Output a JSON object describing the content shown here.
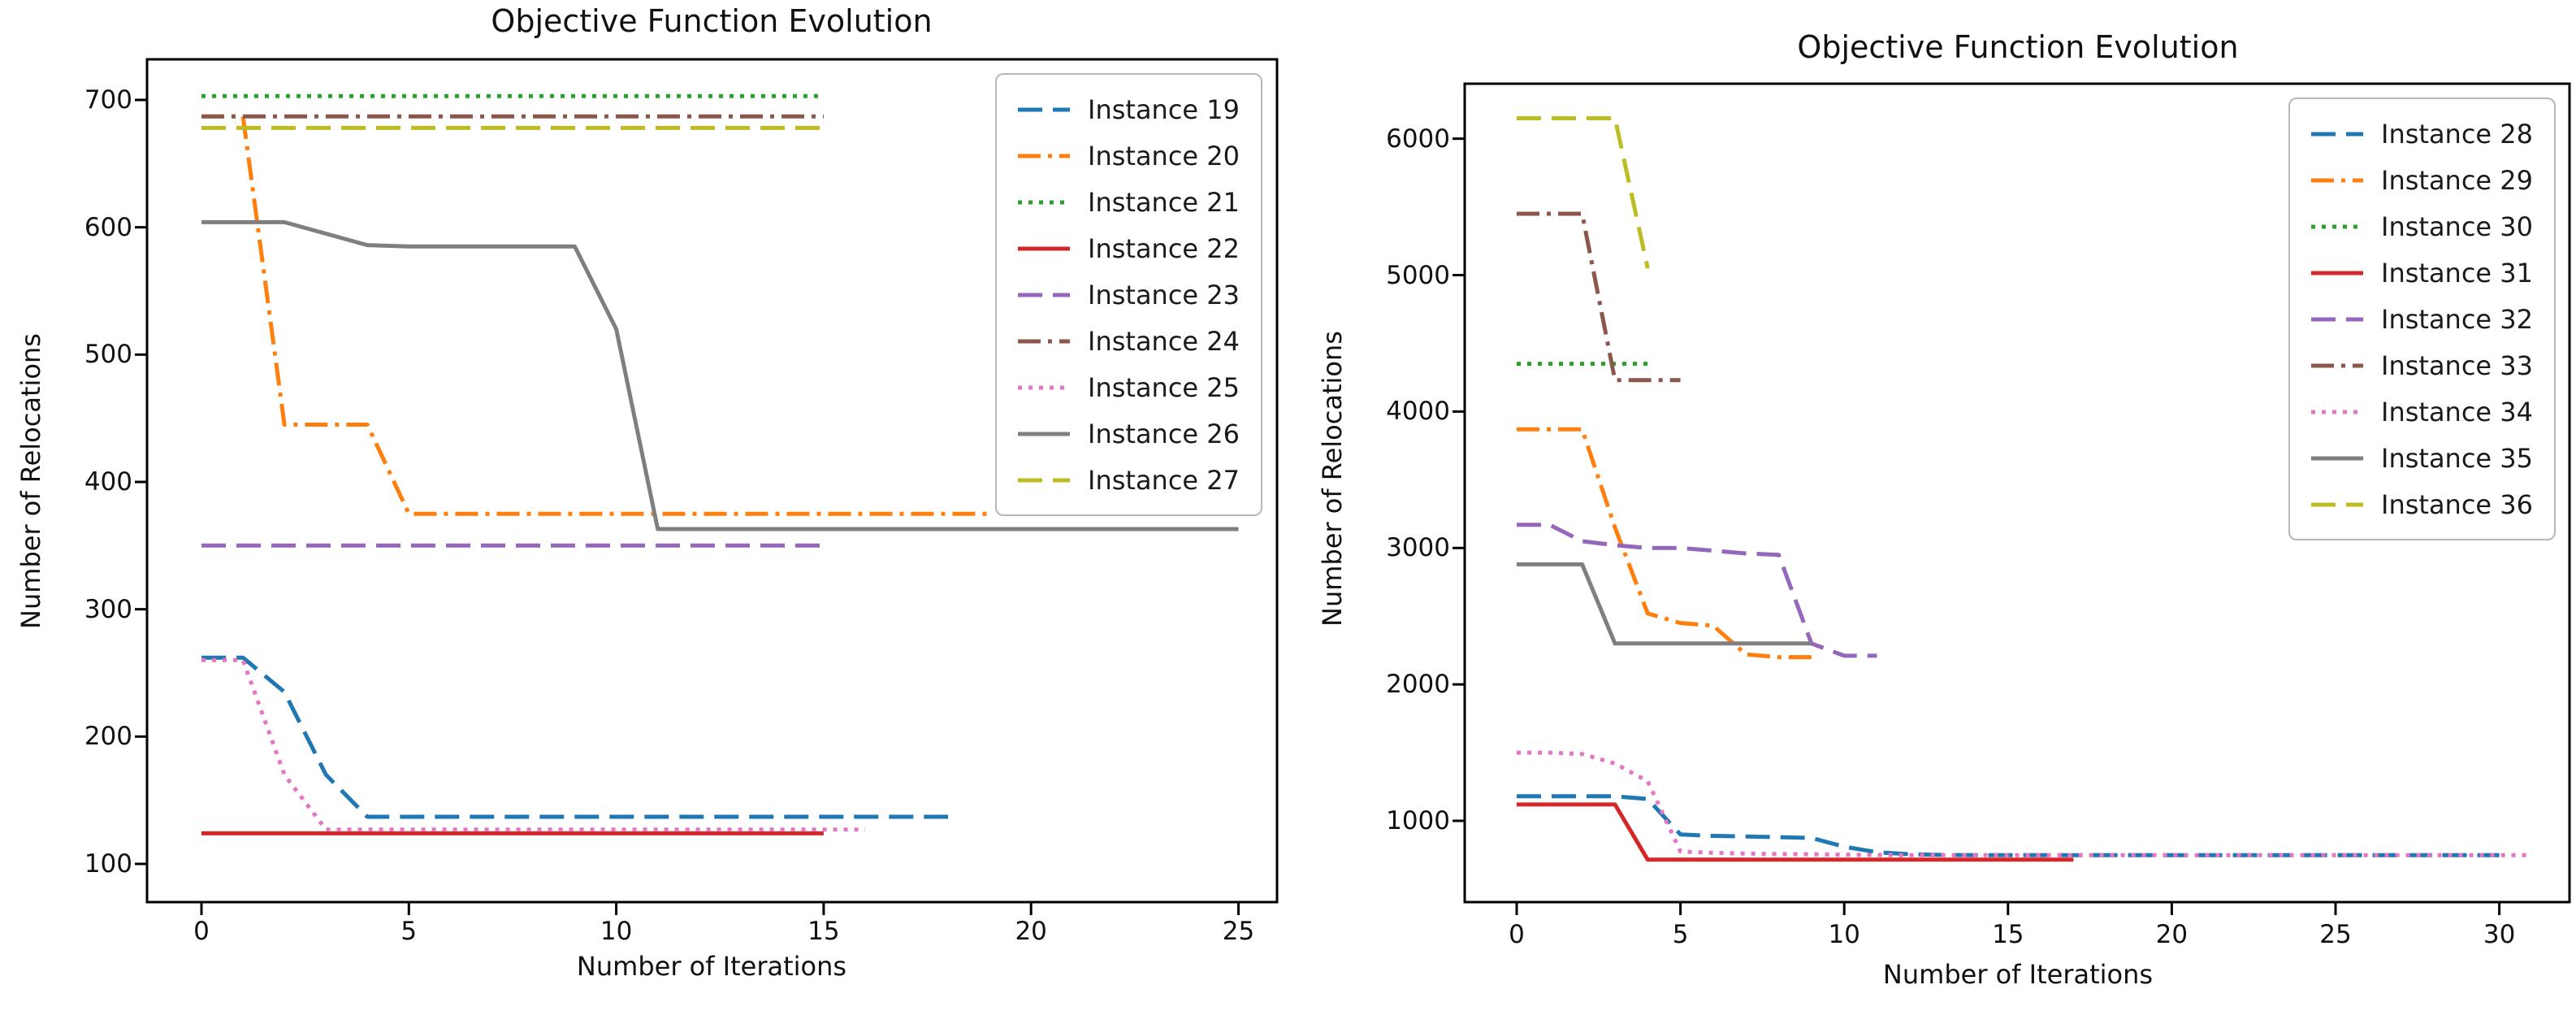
{
  "figure_title": "Objective Function Evolution",
  "chart_data": [
    {
      "type": "line",
      "title": "Objective Function Evolution",
      "xlabel": "Number of Iterations",
      "ylabel": "Number of Relocations",
      "x_ticks": [
        0,
        5,
        10,
        15,
        20,
        25
      ],
      "y_ticks": [
        100,
        200,
        300,
        400,
        500,
        600,
        700
      ],
      "xlim": [
        -1.3,
        26.3
      ],
      "ylim": [
        70,
        733
      ],
      "grid": false,
      "legend_position": "upper right",
      "series": [
        {
          "label": "Instance 19",
          "color": "#1f77b4",
          "linestyle": "dashed",
          "values": [
            262,
            262,
            235,
            170,
            137,
            137,
            137,
            137,
            137,
            137,
            137,
            137,
            137,
            137,
            137,
            137,
            137,
            137,
            137
          ]
        },
        {
          "label": "Instance 20",
          "color": "#ff7f0e",
          "linestyle": "dashdot",
          "values": [
            687,
            687,
            445,
            445,
            445,
            375,
            375,
            375,
            375,
            375,
            375,
            375,
            375,
            375,
            375,
            375,
            375,
            375,
            375,
            375
          ]
        },
        {
          "label": "Instance 21",
          "color": "#2ca02c",
          "linestyle": "dotted",
          "values": [
            703,
            703,
            703,
            703,
            703,
            703,
            703,
            703,
            703,
            703,
            703,
            703,
            703,
            703,
            703,
            703
          ]
        },
        {
          "label": "Instance 22",
          "color": "#d62728",
          "linestyle": "solid",
          "values": [
            124,
            124,
            124,
            124,
            124,
            124,
            124,
            124,
            124,
            124,
            124,
            124,
            124,
            124,
            124,
            124
          ]
        },
        {
          "label": "Instance 23",
          "color": "#9467bd",
          "linestyle": "dashed",
          "values": [
            350,
            350,
            350,
            350,
            350,
            350,
            350,
            350,
            350,
            350,
            350,
            350,
            350,
            350,
            350,
            350
          ]
        },
        {
          "label": "Instance 24",
          "color": "#8c564b",
          "linestyle": "dashdot",
          "values": [
            687,
            687,
            687,
            687,
            687,
            687,
            687,
            687,
            687,
            687,
            687,
            687,
            687,
            687,
            687,
            687
          ]
        },
        {
          "label": "Instance 25",
          "color": "#e377c2",
          "linestyle": "dotted",
          "values": [
            260,
            260,
            170,
            127,
            127,
            127,
            127,
            127,
            127,
            127,
            127,
            127,
            127,
            127,
            127,
            127,
            127
          ]
        },
        {
          "label": "Instance 26",
          "color": "#7f7f7f",
          "linestyle": "solid",
          "values": [
            604,
            604,
            604,
            595,
            586,
            585,
            585,
            585,
            585,
            585,
            520,
            363,
            363,
            363,
            363,
            363,
            363,
            363,
            363,
            363,
            363,
            363,
            363,
            363,
            363,
            363
          ]
        },
        {
          "label": "Instance 27",
          "color": "#bcbd22",
          "linestyle": "dashed",
          "values": [
            678,
            678,
            678,
            678,
            678,
            678,
            678,
            678,
            678,
            678,
            678,
            678,
            678,
            678,
            678,
            678
          ]
        }
      ]
    },
    {
      "type": "line",
      "title": "Objective Function Evolution",
      "xlabel": "Number of Iterations",
      "ylabel": "Number of Relocations",
      "x_ticks": [
        0,
        5,
        10,
        15,
        20,
        25,
        30
      ],
      "y_ticks": [
        1000,
        2000,
        3000,
        4000,
        5000,
        6000
      ],
      "xlim": [
        -1.6,
        32.6
      ],
      "ylim": [
        400,
        6400
      ],
      "grid": false,
      "legend_position": "upper right",
      "series": [
        {
          "label": "Instance 28",
          "color": "#1f77b4",
          "linestyle": "dashed",
          "values": [
            1180,
            1180,
            1180,
            1180,
            1160,
            900,
            890,
            885,
            880,
            875,
            810,
            770,
            755,
            750,
            748,
            748,
            748,
            748,
            748,
            748,
            748,
            748,
            748,
            748,
            748,
            748,
            748,
            748,
            748,
            748,
            748
          ]
        },
        {
          "label": "Instance 29",
          "color": "#ff7f0e",
          "linestyle": "dashdot",
          "values": [
            3870,
            3870,
            3870,
            3150,
            2520,
            2450,
            2430,
            2220,
            2200,
            2200
          ]
        },
        {
          "label": "Instance 30",
          "color": "#2ca02c",
          "linestyle": "dotted",
          "values": [
            4350,
            4350,
            4350,
            4350,
            4350
          ]
        },
        {
          "label": "Instance 31",
          "color": "#d62728",
          "linestyle": "solid",
          "values": [
            1120,
            1120,
            1120,
            1120,
            715,
            715,
            715,
            715,
            715,
            715,
            715,
            715,
            715,
            715,
            715,
            715,
            715,
            715
          ]
        },
        {
          "label": "Instance 32",
          "color": "#9467bd",
          "linestyle": "dashed",
          "values": [
            3170,
            3170,
            3050,
            3020,
            3000,
            3000,
            2980,
            2960,
            2950,
            2300,
            2210,
            2210
          ]
        },
        {
          "label": "Instance 33",
          "color": "#8c564b",
          "linestyle": "dashdot",
          "values": [
            5450,
            5450,
            5450,
            4230,
            4230,
            4230
          ]
        },
        {
          "label": "Instance 34",
          "color": "#e377c2",
          "linestyle": "dotted",
          "values": [
            1500,
            1500,
            1490,
            1420,
            1290,
            775,
            765,
            760,
            757,
            755,
            752,
            750,
            748,
            748,
            748,
            748,
            748,
            748,
            748,
            748,
            748,
            748,
            748,
            748,
            748,
            748,
            748,
            748,
            748,
            748,
            748,
            748
          ]
        },
        {
          "label": "Instance 35",
          "color": "#7f7f7f",
          "linestyle": "solid",
          "values": [
            2880,
            2880,
            2880,
            2300,
            2300,
            2300,
            2300,
            2300,
            2300,
            2300
          ]
        },
        {
          "label": "Instance 36",
          "color": "#bcbd22",
          "linestyle": "dashed",
          "values": [
            6150,
            6150,
            6150,
            6150,
            5050
          ]
        }
      ]
    }
  ]
}
